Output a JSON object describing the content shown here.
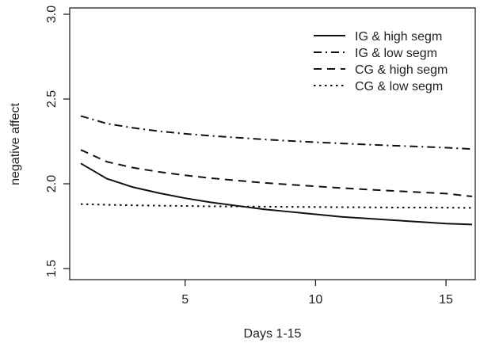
{
  "chart_data": {
    "type": "line",
    "title": "",
    "xlabel": "Days 1-15",
    "ylabel": "negative affect",
    "xlim": [
      1,
      16
    ],
    "ylim": [
      1.5,
      3.0
    ],
    "x_ticks": [
      5,
      10,
      15
    ],
    "y_ticks": [
      1.5,
      2.0,
      2.5,
      3.0
    ],
    "y_tick_labels": [
      "1.5",
      "2.0",
      "2.5",
      "3.0"
    ],
    "grid": false,
    "legend_position": "top-right",
    "series": [
      {
        "name": "IG & high segm",
        "linestyle": "solid",
        "x": [
          1,
          2,
          3,
          4,
          5,
          6,
          7,
          8,
          9,
          10,
          11,
          12,
          13,
          14,
          15,
          16
        ],
        "y": [
          2.12,
          2.03,
          1.98,
          1.945,
          1.915,
          1.89,
          1.87,
          1.85,
          1.835,
          1.82,
          1.805,
          1.795,
          1.785,
          1.775,
          1.765,
          1.76
        ]
      },
      {
        "name": "IG & low segm",
        "linestyle": "dashdot",
        "x": [
          1,
          2,
          3,
          4,
          5,
          6,
          7,
          8,
          9,
          10,
          11,
          12,
          13,
          14,
          15,
          16
        ],
        "y": [
          2.4,
          2.355,
          2.33,
          2.31,
          2.295,
          2.283,
          2.272,
          2.262,
          2.253,
          2.245,
          2.238,
          2.231,
          2.225,
          2.219,
          2.213,
          2.205
        ]
      },
      {
        "name": "CG & high segm",
        "linestyle": "dashed",
        "x": [
          1,
          2,
          3,
          4,
          5,
          6,
          7,
          8,
          9,
          10,
          11,
          12,
          13,
          14,
          15,
          16
        ],
        "y": [
          2.2,
          2.13,
          2.095,
          2.07,
          2.05,
          2.033,
          2.019,
          2.006,
          1.995,
          1.985,
          1.975,
          1.966,
          1.958,
          1.95,
          1.942,
          1.925
        ]
      },
      {
        "name": "CG & low segm",
        "linestyle": "dotted",
        "x": [
          1,
          2,
          3,
          4,
          5,
          6,
          7,
          8,
          9,
          10,
          11,
          12,
          13,
          14,
          15,
          16
        ],
        "y": [
          1.88,
          1.876,
          1.873,
          1.871,
          1.869,
          1.867,
          1.866,
          1.865,
          1.864,
          1.863,
          1.862,
          1.861,
          1.86,
          1.86,
          1.859,
          1.858
        ]
      }
    ]
  }
}
